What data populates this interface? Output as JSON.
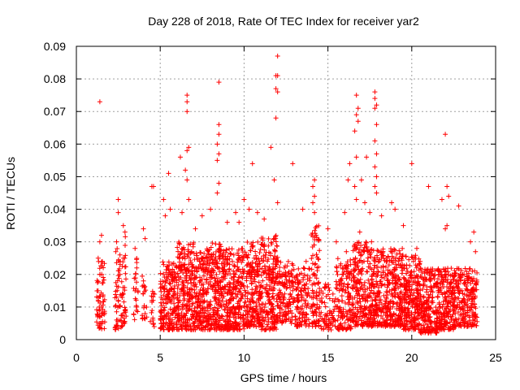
{
  "chart_data": {
    "type": "scatter",
    "title": "Day 228 of 2018, Rate Of TEC Index for receiver yar2",
    "xlabel": "GPS time / hours",
    "ylabel": "ROTI / TECUs",
    "xlim": [
      0,
      25
    ],
    "ylim": [
      0,
      0.09
    ],
    "xticks": [
      0,
      5,
      10,
      15,
      20,
      25
    ],
    "xtick_labels": [
      "0",
      "5",
      "10",
      "15",
      "20",
      "25"
    ],
    "yticks": [
      0,
      0.01,
      0.02,
      0.03,
      0.04,
      0.05,
      0.06,
      0.07,
      0.08,
      0.09
    ],
    "ytick_labels": [
      "0",
      "0.01",
      "0.02",
      "0.03",
      "0.04",
      "0.05",
      "0.06",
      "0.07",
      "0.08",
      "0.09"
    ],
    "grid": true,
    "marker": "+",
    "series": [
      {
        "name": "ROTI",
        "color": "#ff0000",
        "points": [
          [
            1.4,
            0.073
          ],
          [
            1.3,
            0.025
          ],
          [
            1.4,
            0.03
          ],
          [
            1.5,
            0.032
          ],
          [
            1.4,
            0.02
          ],
          [
            1.3,
            0.015
          ],
          [
            1.5,
            0.01
          ],
          [
            1.4,
            0.005
          ],
          [
            1.5,
            0.008
          ],
          [
            1.3,
            0.012
          ],
          [
            2.5,
            0.043
          ],
          [
            2.5,
            0.039
          ],
          [
            2.4,
            0.03
          ],
          [
            2.6,
            0.02
          ],
          [
            2.5,
            0.012
          ],
          [
            2.4,
            0.006
          ],
          [
            2.6,
            0.026
          ],
          [
            2.8,
            0.035
          ],
          [
            2.9,
            0.033
          ],
          [
            2.8,
            0.025
          ],
          [
            2.8,
            0.014
          ],
          [
            2.9,
            0.009
          ],
          [
            3.5,
            0.028
          ],
          [
            3.6,
            0.022
          ],
          [
            3.5,
            0.015
          ],
          [
            3.6,
            0.01
          ],
          [
            4.0,
            0.034
          ],
          [
            4.1,
            0.031
          ],
          [
            4.0,
            0.018
          ],
          [
            4.1,
            0.008
          ],
          [
            4.5,
            0.047
          ],
          [
            4.6,
            0.047
          ],
          [
            4.5,
            0.012
          ],
          [
            4.6,
            0.005
          ],
          [
            5.2,
            0.043
          ],
          [
            5.3,
            0.038
          ],
          [
            5.5,
            0.051
          ],
          [
            5.6,
            0.04
          ],
          [
            6.6,
            0.075
          ],
          [
            6.6,
            0.073
          ],
          [
            6.6,
            0.07
          ],
          [
            6.7,
            0.059
          ],
          [
            6.6,
            0.058
          ],
          [
            6.5,
            0.052
          ],
          [
            6.6,
            0.049
          ],
          [
            6.7,
            0.043
          ],
          [
            6.2,
            0.056
          ],
          [
            6.3,
            0.039
          ],
          [
            7.1,
            0.034
          ],
          [
            7.5,
            0.038
          ],
          [
            8.5,
            0.079
          ],
          [
            8.5,
            0.066
          ],
          [
            8.5,
            0.063
          ],
          [
            8.4,
            0.06
          ],
          [
            8.5,
            0.057
          ],
          [
            8.4,
            0.055
          ],
          [
            8.5,
            0.048
          ],
          [
            8.4,
            0.045
          ],
          [
            8.0,
            0.04
          ],
          [
            9.0,
            0.036
          ],
          [
            9.5,
            0.039
          ],
          [
            9.7,
            0.036
          ],
          [
            10.0,
            0.043
          ],
          [
            10.5,
            0.054
          ],
          [
            10.3,
            0.04
          ],
          [
            10.8,
            0.039
          ],
          [
            11.2,
            0.037
          ],
          [
            11.6,
            0.059
          ],
          [
            12.0,
            0.087
          ],
          [
            11.9,
            0.081
          ],
          [
            12.0,
            0.081
          ],
          [
            11.9,
            0.077
          ],
          [
            12.0,
            0.076
          ],
          [
            11.9,
            0.068
          ],
          [
            11.8,
            0.049
          ],
          [
            12.0,
            0.042
          ],
          [
            12.9,
            0.054
          ],
          [
            13.5,
            0.04
          ],
          [
            14.2,
            0.049
          ],
          [
            14.1,
            0.047
          ],
          [
            14.2,
            0.044
          ],
          [
            14.1,
            0.042
          ],
          [
            14.2,
            0.039
          ],
          [
            15.0,
            0.034
          ],
          [
            15.5,
            0.03
          ],
          [
            16.0,
            0.039
          ],
          [
            16.3,
            0.054
          ],
          [
            16.2,
            0.049
          ],
          [
            16.7,
            0.075
          ],
          [
            16.8,
            0.071
          ],
          [
            16.7,
            0.069
          ],
          [
            16.8,
            0.067
          ],
          [
            16.6,
            0.064
          ],
          [
            16.7,
            0.056
          ],
          [
            16.6,
            0.047
          ],
          [
            16.7,
            0.043
          ],
          [
            17.0,
            0.049
          ],
          [
            17.2,
            0.042
          ],
          [
            17.3,
            0.056
          ],
          [
            17.8,
            0.076
          ],
          [
            17.8,
            0.074
          ],
          [
            17.9,
            0.072
          ],
          [
            17.8,
            0.071
          ],
          [
            17.9,
            0.066
          ],
          [
            17.8,
            0.061
          ],
          [
            17.9,
            0.057
          ],
          [
            17.8,
            0.053
          ],
          [
            17.9,
            0.05
          ],
          [
            17.8,
            0.047
          ],
          [
            17.9,
            0.045
          ],
          [
            17.5,
            0.039
          ],
          [
            18.2,
            0.038
          ],
          [
            18.8,
            0.042
          ],
          [
            19.0,
            0.04
          ],
          [
            19.5,
            0.035
          ],
          [
            20.0,
            0.054
          ],
          [
            20.3,
            0.028
          ],
          [
            21.0,
            0.047
          ],
          [
            21.8,
            0.043
          ],
          [
            22.0,
            0.063
          ],
          [
            22.1,
            0.047
          ],
          [
            22.2,
            0.044
          ],
          [
            22.1,
            0.035
          ],
          [
            22.0,
            0.034
          ],
          [
            22.8,
            0.041
          ],
          [
            23.5,
            0.03
          ],
          [
            23.7,
            0.033
          ],
          [
            23.8,
            0.027
          ],
          [
            5.7,
            0.019
          ],
          [
            6.2,
            0.021
          ],
          [
            6.9,
            0.023
          ],
          [
            7.4,
            0.018
          ],
          [
            7.9,
            0.026
          ],
          [
            8.7,
            0.022
          ],
          [
            9.3,
            0.024
          ],
          [
            9.9,
            0.028
          ],
          [
            10.6,
            0.025
          ],
          [
            11.1,
            0.029
          ],
          [
            11.8,
            0.031
          ],
          [
            12.4,
            0.022
          ],
          [
            13.0,
            0.019
          ],
          [
            13.7,
            0.024
          ],
          [
            14.3,
            0.032
          ],
          [
            14.8,
            0.016
          ],
          [
            15.3,
            0.014
          ],
          [
            16.1,
            0.027
          ],
          [
            16.9,
            0.033
          ],
          [
            17.6,
            0.03
          ],
          [
            18.3,
            0.021
          ],
          [
            18.9,
            0.025
          ],
          [
            19.4,
            0.022
          ],
          [
            19.9,
            0.019
          ],
          [
            20.5,
            0.024
          ],
          [
            21.1,
            0.018
          ],
          [
            21.6,
            0.02
          ],
          [
            22.3,
            0.017
          ],
          [
            22.9,
            0.015
          ],
          [
            23.4,
            0.019
          ]
        ]
      }
    ],
    "dense_bands": [
      {
        "x_start": 1.2,
        "x_end": 1.7,
        "y_min": 0.003,
        "y_max": 0.024,
        "count": 60
      },
      {
        "x_start": 2.3,
        "x_end": 2.7,
        "y_min": 0.003,
        "y_max": 0.028,
        "count": 45
      },
      {
        "x_start": 2.7,
        "x_end": 3.0,
        "y_min": 0.004,
        "y_max": 0.032,
        "count": 35
      },
      {
        "x_start": 3.4,
        "x_end": 3.7,
        "y_min": 0.006,
        "y_max": 0.025,
        "count": 20
      },
      {
        "x_start": 3.9,
        "x_end": 4.2,
        "y_min": 0.006,
        "y_max": 0.02,
        "count": 18
      },
      {
        "x_start": 4.4,
        "x_end": 4.7,
        "y_min": 0.004,
        "y_max": 0.016,
        "count": 14
      },
      {
        "x_start": 5.0,
        "x_end": 6.0,
        "y_min": 0.003,
        "y_max": 0.024,
        "count": 180
      },
      {
        "x_start": 6.0,
        "x_end": 7.0,
        "y_min": 0.003,
        "y_max": 0.03,
        "count": 230
      },
      {
        "x_start": 7.0,
        "x_end": 8.0,
        "y_min": 0.003,
        "y_max": 0.028,
        "count": 220
      },
      {
        "x_start": 8.0,
        "x_end": 9.0,
        "y_min": 0.003,
        "y_max": 0.03,
        "count": 230
      },
      {
        "x_start": 9.0,
        "x_end": 10.0,
        "y_min": 0.003,
        "y_max": 0.028,
        "count": 210
      },
      {
        "x_start": 10.0,
        "x_end": 11.0,
        "y_min": 0.004,
        "y_max": 0.03,
        "count": 210
      },
      {
        "x_start": 11.0,
        "x_end": 12.0,
        "y_min": 0.003,
        "y_max": 0.032,
        "count": 210
      },
      {
        "x_start": 12.0,
        "x_end": 13.0,
        "y_min": 0.005,
        "y_max": 0.024,
        "count": 140
      },
      {
        "x_start": 13.0,
        "x_end": 14.0,
        "y_min": 0.004,
        "y_max": 0.022,
        "count": 120
      },
      {
        "x_start": 14.0,
        "x_end": 14.5,
        "y_min": 0.004,
        "y_max": 0.035,
        "count": 90
      },
      {
        "x_start": 14.5,
        "x_end": 15.5,
        "y_min": 0.003,
        "y_max": 0.018,
        "count": 70
      },
      {
        "x_start": 15.5,
        "x_end": 16.5,
        "y_min": 0.003,
        "y_max": 0.025,
        "count": 150
      },
      {
        "x_start": 16.5,
        "x_end": 17.5,
        "y_min": 0.004,
        "y_max": 0.03,
        "count": 200
      },
      {
        "x_start": 17.5,
        "x_end": 18.5,
        "y_min": 0.004,
        "y_max": 0.028,
        "count": 210
      },
      {
        "x_start": 18.5,
        "x_end": 19.5,
        "y_min": 0.004,
        "y_max": 0.028,
        "count": 220
      },
      {
        "x_start": 19.5,
        "x_end": 20.5,
        "y_min": 0.003,
        "y_max": 0.026,
        "count": 220
      },
      {
        "x_start": 20.5,
        "x_end": 21.5,
        "y_min": 0.002,
        "y_max": 0.022,
        "count": 200
      },
      {
        "x_start": 21.5,
        "x_end": 22.5,
        "y_min": 0.003,
        "y_max": 0.022,
        "count": 200
      },
      {
        "x_start": 22.5,
        "x_end": 23.9,
        "y_min": 0.004,
        "y_max": 0.022,
        "count": 230
      }
    ]
  }
}
